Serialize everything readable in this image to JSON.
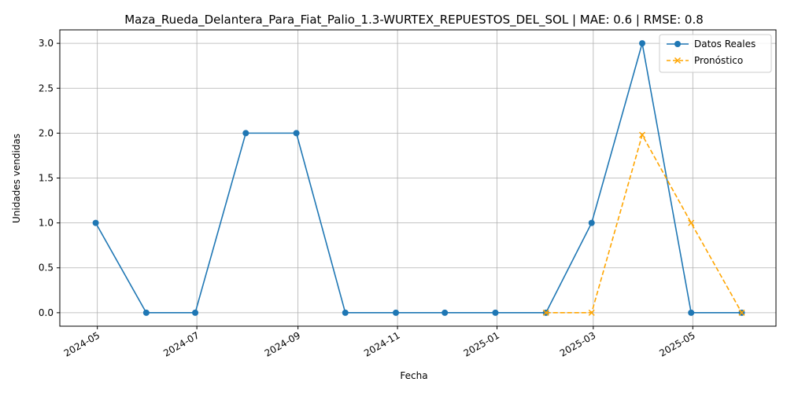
{
  "chart_data": {
    "type": "line",
    "title": "Maza_Rueda_Delantera_Para_Fiat_Palio_1.3-WURTEX_REPUESTOS_DEL_SOL | MAE: 0.6 | RMSE: 0.8",
    "xlabel": "Fecha",
    "ylabel": "Unidades vendidas",
    "x_ticks": [
      "2024-05",
      "2024-07",
      "2024-09",
      "2024-11",
      "2025-01",
      "2025-03",
      "2025-05"
    ],
    "y_ticks": [
      "0.0",
      "0.5",
      "1.0",
      "1.5",
      "2.0",
      "2.5",
      "3.0"
    ],
    "ylim": [
      -0.15,
      3.15
    ],
    "xlim": [
      "2024-04-08",
      "2025-06-21"
    ],
    "grid": true,
    "legend_position": "top-right",
    "series": [
      {
        "name": "Datos Reales",
        "color": "#1f77b4",
        "line_style": "solid",
        "marker": "circle",
        "x": [
          "2024-04-30",
          "2024-05-31",
          "2024-06-30",
          "2024-07-31",
          "2024-08-31",
          "2024-09-30",
          "2024-10-31",
          "2024-11-30",
          "2024-12-31",
          "2025-01-31",
          "2025-02-28",
          "2025-03-31",
          "2025-04-30",
          "2025-05-31"
        ],
        "y": [
          1,
          0,
          0,
          2,
          2,
          0,
          0,
          0,
          0,
          0,
          1,
          3,
          0,
          0
        ]
      },
      {
        "name": "Pronóstico",
        "color": "#ffa500",
        "line_style": "dashed",
        "marker": "x",
        "x": [
          "2025-01-31",
          "2025-02-28",
          "2025-03-31",
          "2025-04-30",
          "2025-05-31"
        ],
        "y": [
          0,
          0,
          1.98,
          1,
          0
        ]
      }
    ]
  }
}
